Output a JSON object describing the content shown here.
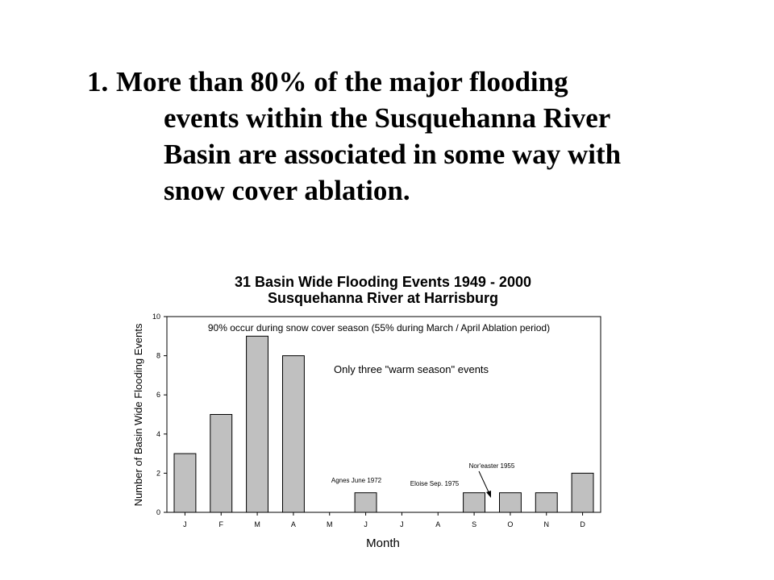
{
  "slide": {
    "number": "1.",
    "lines": [
      "More than 80% of the major flooding",
      "events within the Susquehanna River",
      "Basin are associated in some way with",
      "snow cover ablation."
    ]
  },
  "chart_data": {
    "type": "bar",
    "title": "31 Basin Wide Flooding Events 1949 - 2000",
    "subtitle": "Susquehanna River at Harrisburg",
    "xlabel": "Month",
    "ylabel": "Number of Basin Wide Flooding Events",
    "categories": [
      "J",
      "F",
      "M",
      "A",
      "M",
      "J",
      "J",
      "A",
      "S",
      "O",
      "N",
      "D"
    ],
    "values": [
      3,
      5,
      9,
      8,
      0,
      1,
      0,
      0,
      1,
      1,
      1,
      2
    ],
    "ylim": [
      0,
      10
    ],
    "yticks": [
      0,
      2,
      4,
      6,
      8,
      10
    ],
    "grid": false,
    "bar_color": "#c0c0c0",
    "annotations": {
      "top_note": "90% occur during snow cover season (55% during March / April Ablation period)",
      "warm_note": "Only three \"warm season\" events",
      "agnes": "Agnes June 1972",
      "eloise": "Eloise Sep. 1975",
      "noreaster": "Nor'easter 1955"
    }
  }
}
